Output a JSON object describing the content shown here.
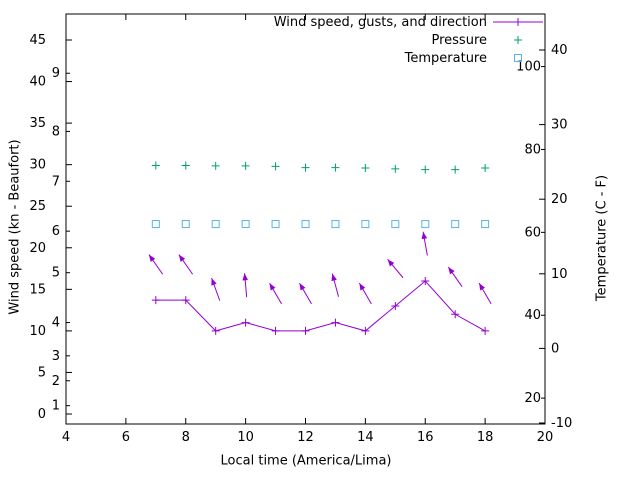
{
  "chart_data": {
    "type": "line",
    "xlabel": "Local time (America/Lima)",
    "ylabel_left": "Wind speed (kn - Beaufort)",
    "ylabel_right": "Temperature (C - F)",
    "colors": {
      "wind": "#9400d3",
      "pressure": "#009e73",
      "temperature": "#56b4e9",
      "axis": "#000000",
      "background": "#ffffff"
    },
    "legend": [
      {
        "label": "Wind speed, gusts, and direction",
        "marker": "line-plus",
        "color": "#9400d3"
      },
      {
        "label": "Pressure",
        "marker": "plus",
        "color": "#009e73"
      },
      {
        "label": "Temperature",
        "marker": "square-open",
        "color": "#56b4e9"
      }
    ],
    "axes": {
      "x": {
        "range": [
          4,
          20
        ],
        "ticks": [
          4,
          6,
          8,
          10,
          12,
          14,
          16,
          18,
          20
        ]
      },
      "left_kn": {
        "range": [
          0,
          45
        ],
        "ticks": [
          0,
          5,
          10,
          15,
          20,
          25,
          30,
          35,
          40,
          45
        ]
      },
      "left_beaufort": {
        "labels": [
          "1",
          "2",
          "3",
          "4",
          "5",
          "6",
          "7",
          "8",
          "9"
        ],
        "kn_positions": [
          1,
          4,
          7,
          11,
          17,
          22,
          28,
          34,
          41
        ]
      },
      "right_c": {
        "range": [
          -10,
          40
        ],
        "ticks": [
          -10,
          0,
          10,
          20,
          30,
          40
        ]
      },
      "right_f": {
        "ticks": [
          20,
          40,
          60,
          80,
          100
        ]
      }
    },
    "hours": [
      7,
      8,
      9,
      10,
      11,
      12,
      13,
      14,
      15,
      16,
      17,
      18
    ],
    "series": [
      {
        "name": "wind-speed-kn",
        "axis": "left_kn",
        "style": "line+plus",
        "color": "#9400d3",
        "values": [
          13.7,
          13.7,
          10,
          11,
          10,
          10,
          11,
          10,
          13,
          16,
          12,
          10
        ]
      },
      {
        "name": "wind-gust-kn-direction",
        "axis": "left_kn",
        "style": "arrows",
        "color": "#9400d3",
        "values": [
          18,
          18,
          15,
          15.5,
          14.5,
          14.5,
          15.5,
          14.5,
          17.5,
          20.5,
          16.5,
          14.5
        ],
        "direction_deg_from_up": [
          -35,
          -35,
          -20,
          -5,
          -30,
          -30,
          -15,
          -30,
          -40,
          -10,
          -35,
          -30
        ]
      },
      {
        "name": "pressure",
        "axis": "left_kn",
        "style": "plus",
        "color": "#009e73",
        "values": [
          29.9,
          29.9,
          29.85,
          29.85,
          29.8,
          29.65,
          29.65,
          29.6,
          29.5,
          29.4,
          29.4,
          29.6
        ]
      },
      {
        "name": "temperature-f",
        "axis": "right_f",
        "style": "square-open",
        "color": "#56b4e9",
        "values": [
          62,
          62,
          62,
          62,
          62,
          62,
          62,
          62,
          62,
          62,
          62,
          62
        ]
      }
    ]
  }
}
